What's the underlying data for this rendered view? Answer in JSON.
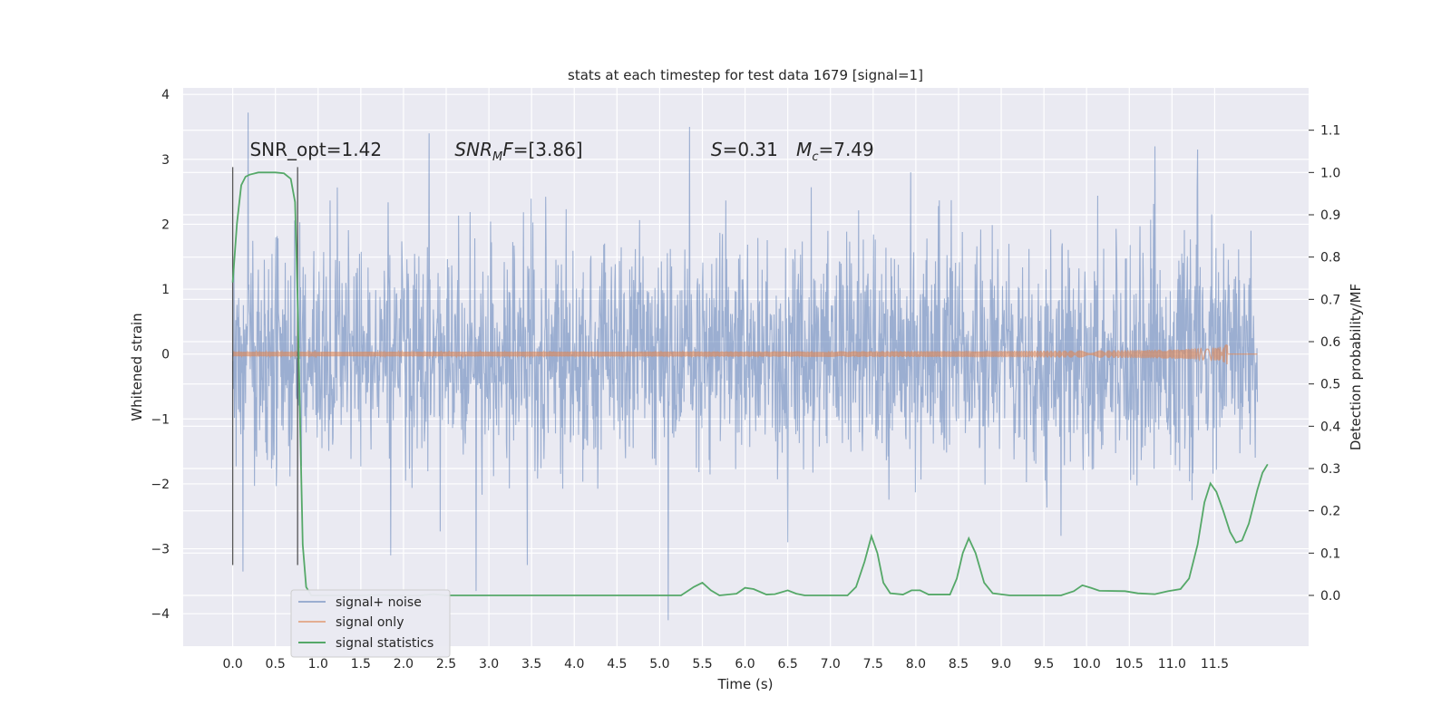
{
  "chart_data": {
    "type": "line",
    "title": "stats at each timestep for test data 1679 [signal=1]",
    "xlabel": "Time (s)",
    "ylabel": "Whitened strain",
    "y2label": "Detection probability/MF",
    "xlim": [
      -0.58,
      12.6
    ],
    "ylim": [
      -4.5,
      4.1
    ],
    "y2lim": [
      -0.12,
      1.2
    ],
    "xticks": [
      0.0,
      0.5,
      1.0,
      1.5,
      2.0,
      2.5,
      3.0,
      3.5,
      4.0,
      4.5,
      5.0,
      5.5,
      6.0,
      6.5,
      7.0,
      7.5,
      8.0,
      8.5,
      9.0,
      9.5,
      10.0,
      10.5,
      11.0,
      11.5
    ],
    "xtick_labels": [
      "0.0",
      "0.5",
      "1.0",
      "1.5",
      "2.0",
      "2.5",
      "3.0",
      "3.5",
      "4.0",
      "4.5",
      "5.0",
      "5.5",
      "6.0",
      "6.5",
      "7.0",
      "7.5",
      "8.0",
      "8.5",
      "9.0",
      "9.5",
      "10.0",
      "10.5",
      "11.0",
      "11.5"
    ],
    "yticks": [
      -4,
      -3,
      -2,
      -1,
      0,
      1,
      2,
      3,
      4
    ],
    "ytick_labels": [
      "−4",
      "−3",
      "−2",
      "−1",
      "0",
      "1",
      "2",
      "3",
      "4"
    ],
    "y2ticks": [
      0.0,
      0.1,
      0.2,
      0.3,
      0.4,
      0.5,
      0.6,
      0.7,
      0.8,
      0.9,
      1.0,
      1.1
    ],
    "y2tick_labels": [
      "0.0",
      "0.1",
      "0.2",
      "0.3",
      "0.4",
      "0.5",
      "0.6",
      "0.7",
      "0.8",
      "0.9",
      "1.0",
      "1.1"
    ],
    "grid": true,
    "legend_position": "lower-left",
    "series": [
      {
        "name": "signal+ noise",
        "color": "#4c72b0",
        "axis": "left",
        "x_range": [
          0.0,
          12.0
        ],
        "typical_amplitude": 1.0,
        "peaks": [
          {
            "x": 0.18,
            "y": 3.72
          },
          {
            "x": 0.12,
            "y": -3.35
          },
          {
            "x": 1.85,
            "y": -3.1
          },
          {
            "x": 2.85,
            "y": -3.65
          },
          {
            "x": 3.45,
            "y": -3.25
          },
          {
            "x": 5.1,
            "y": -4.1
          },
          {
            "x": 5.35,
            "y": 3.5
          },
          {
            "x": 2.3,
            "y": 3.4
          },
          {
            "x": 10.8,
            "y": 3.2
          },
          {
            "x": 11.3,
            "y": 3.15
          },
          {
            "x": 6.5,
            "y": -2.9
          },
          {
            "x": 9.7,
            "y": -2.8
          }
        ]
      },
      {
        "name": "signal only",
        "color": "#dd8452",
        "axis": "left",
        "x_range": [
          0.0,
          12.0
        ],
        "chirp_end": 11.65,
        "max_amplitude": 0.17
      },
      {
        "name": "signal statistics",
        "color": "#55a868",
        "axis": "right",
        "points": [
          [
            0.0,
            0.74
          ],
          [
            0.05,
            0.88
          ],
          [
            0.1,
            0.97
          ],
          [
            0.15,
            0.99
          ],
          [
            0.2,
            0.995
          ],
          [
            0.3,
            1.0
          ],
          [
            0.5,
            1.0
          ],
          [
            0.6,
            0.998
          ],
          [
            0.68,
            0.985
          ],
          [
            0.73,
            0.93
          ],
          [
            0.76,
            0.7
          ],
          [
            0.79,
            0.4
          ],
          [
            0.82,
            0.12
          ],
          [
            0.86,
            0.02
          ],
          [
            0.92,
            0.0
          ],
          [
            1.5,
            0.0
          ],
          [
            1.7,
            0.001
          ],
          [
            1.9,
            0.0
          ],
          [
            2.2,
            0.0
          ],
          [
            2.35,
            0.003
          ],
          [
            2.5,
            0.0
          ],
          [
            5.0,
            0.0
          ],
          [
            5.25,
            0.0
          ],
          [
            5.4,
            0.02
          ],
          [
            5.5,
            0.03
          ],
          [
            5.6,
            0.012
          ],
          [
            5.7,
            0.0
          ],
          [
            5.9,
            0.004
          ],
          [
            6.0,
            0.018
          ],
          [
            6.1,
            0.015
          ],
          [
            6.25,
            0.002
          ],
          [
            6.35,
            0.003
          ],
          [
            6.5,
            0.012
          ],
          [
            6.6,
            0.004
          ],
          [
            6.7,
            0.0
          ],
          [
            7.2,
            0.0
          ],
          [
            7.3,
            0.02
          ],
          [
            7.4,
            0.08
          ],
          [
            7.48,
            0.14
          ],
          [
            7.55,
            0.1
          ],
          [
            7.62,
            0.03
          ],
          [
            7.7,
            0.005
          ],
          [
            7.85,
            0.002
          ],
          [
            7.95,
            0.012
          ],
          [
            8.05,
            0.012
          ],
          [
            8.15,
            0.002
          ],
          [
            8.4,
            0.002
          ],
          [
            8.48,
            0.04
          ],
          [
            8.55,
            0.1
          ],
          [
            8.62,
            0.135
          ],
          [
            8.7,
            0.1
          ],
          [
            8.8,
            0.03
          ],
          [
            8.9,
            0.005
          ],
          [
            9.1,
            0.0
          ],
          [
            9.7,
            0.0
          ],
          [
            9.85,
            0.01
          ],
          [
            9.95,
            0.024
          ],
          [
            10.05,
            0.018
          ],
          [
            10.15,
            0.011
          ],
          [
            10.45,
            0.01
          ],
          [
            10.6,
            0.005
          ],
          [
            10.8,
            0.003
          ],
          [
            10.95,
            0.01
          ],
          [
            11.1,
            0.015
          ],
          [
            11.2,
            0.04
          ],
          [
            11.3,
            0.12
          ],
          [
            11.38,
            0.22
          ],
          [
            11.45,
            0.265
          ],
          [
            11.52,
            0.245
          ],
          [
            11.6,
            0.2
          ],
          [
            11.68,
            0.15
          ],
          [
            11.75,
            0.125
          ],
          [
            11.82,
            0.13
          ],
          [
            11.9,
            0.17
          ],
          [
            12.0,
            0.25
          ],
          [
            12.06,
            0.29
          ],
          [
            12.12,
            0.31
          ]
        ]
      }
    ],
    "vertical_lines": [
      0.0,
      0.76
    ],
    "annotations": [
      {
        "text": "SNR_opt=1.42",
        "x": 0.2,
        "y": 3.05
      },
      {
        "text": "SNR",
        "sub": "M",
        "rest": "F=[3.86]",
        "x": 2.6,
        "y": 3.05
      },
      {
        "text": "S",
        "rest": "=0.31",
        "x": 5.6,
        "y": 3.05
      },
      {
        "text": "M",
        "sub": "c",
        "rest": "=7.49",
        "x": 6.6,
        "y": 3.05
      }
    ]
  }
}
